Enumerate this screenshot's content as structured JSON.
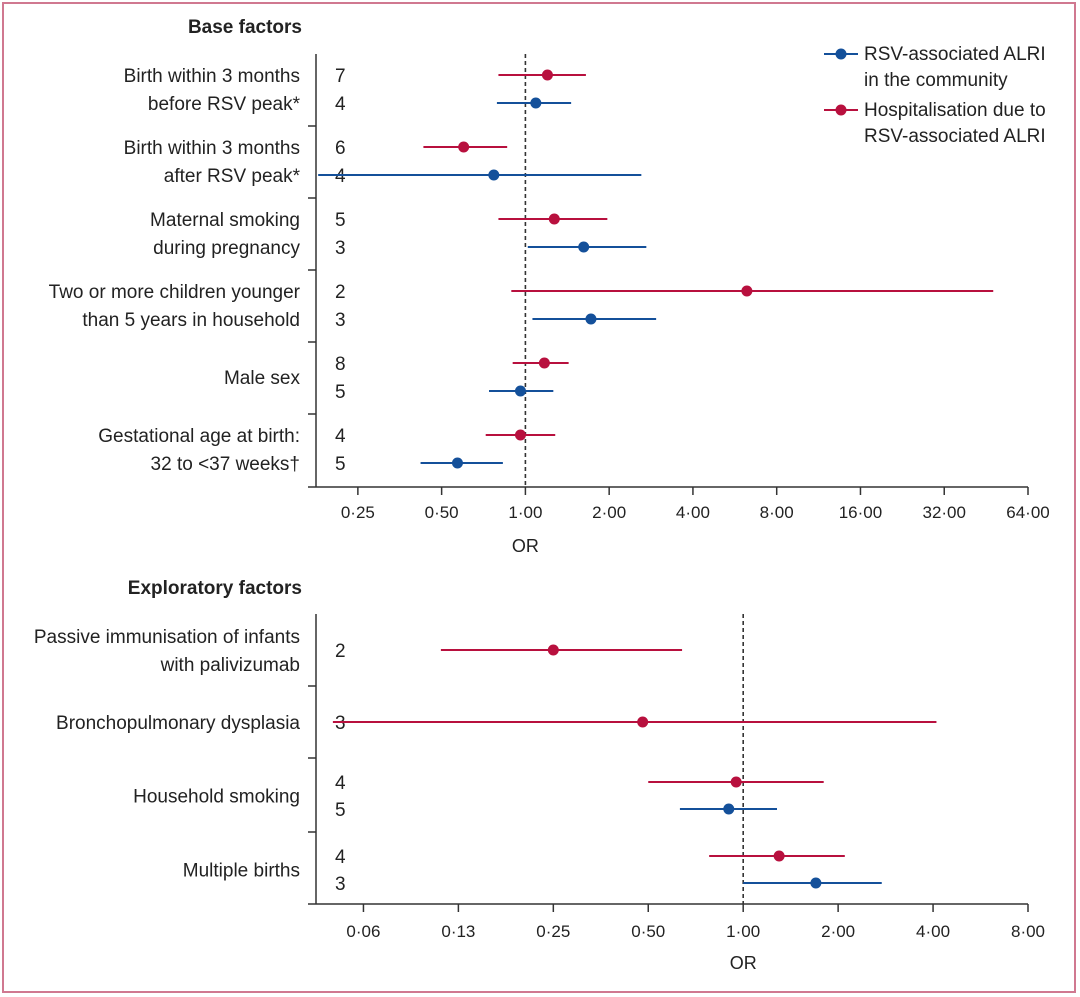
{
  "colors": {
    "community": "#14509a",
    "hospitalisation": "#b8103e",
    "frame": "#d07890"
  },
  "legend": [
    {
      "key": "community",
      "lines": [
        "RSV-associated ALRI",
        "in the community"
      ]
    },
    {
      "key": "hospitalisation",
      "lines": [
        "Hospitalisation due to",
        "RSV-associated ALRI"
      ]
    }
  ],
  "chart_data": [
    {
      "type": "forest",
      "title": "Base factors",
      "xlabel": "OR",
      "xscale": "log2",
      "xlim": [
        0.1768,
        64
      ],
      "reference_line": 1,
      "ticks": [
        {
          "value": 0.25,
          "label": "0·25"
        },
        {
          "value": 0.5,
          "label": "0·50"
        },
        {
          "value": 1,
          "label": "1·00"
        },
        {
          "value": 2,
          "label": "2·00"
        },
        {
          "value": 4,
          "label": "4·00"
        },
        {
          "value": 8,
          "label": "8·00"
        },
        {
          "value": 16,
          "label": "16·00"
        },
        {
          "value": 32,
          "label": "32·00"
        },
        {
          "value": 64,
          "label": "64·00"
        }
      ],
      "factors": [
        {
          "label": [
            "Birth within 3 months",
            "before RSV peak*"
          ],
          "rows": [
            {
              "series": "hospitalisation",
              "n": "7",
              "or": 1.2,
              "lo": 0.8,
              "hi": 1.65
            },
            {
              "series": "community",
              "n": "4",
              "or": 1.09,
              "lo": 0.79,
              "hi": 1.46
            }
          ]
        },
        {
          "label": [
            "Birth within 3 months",
            "after RSV peak*"
          ],
          "rows": [
            {
              "series": "hospitalisation",
              "n": "6",
              "or": 0.6,
              "lo": 0.43,
              "hi": 0.86
            },
            {
              "series": "community",
              "n": "4",
              "or": 0.77,
              "lo": 0.18,
              "hi": 2.61
            }
          ]
        },
        {
          "label": [
            "Maternal smoking",
            "during pregnancy"
          ],
          "rows": [
            {
              "series": "hospitalisation",
              "n": "5",
              "or": 1.27,
              "lo": 0.8,
              "hi": 1.97
            },
            {
              "series": "community",
              "n": "3",
              "or": 1.62,
              "lo": 1.02,
              "hi": 2.72
            }
          ]
        },
        {
          "label": [
            "Two or more children younger",
            "than 5 years in household"
          ],
          "rows": [
            {
              "series": "hospitalisation",
              "n": "2",
              "or": 6.25,
              "lo": 0.89,
              "hi": 48.0
            },
            {
              "series": "community",
              "n": "3",
              "or": 1.72,
              "lo": 1.06,
              "hi": 2.95
            }
          ]
        },
        {
          "label": [
            "Male sex"
          ],
          "rows": [
            {
              "series": "hospitalisation",
              "n": "8",
              "or": 1.17,
              "lo": 0.9,
              "hi": 1.43
            },
            {
              "series": "community",
              "n": "5",
              "or": 0.96,
              "lo": 0.74,
              "hi": 1.26
            }
          ]
        },
        {
          "label": [
            "Gestational age at birth:",
            "32 to <37 weeks†"
          ],
          "rows": [
            {
              "series": "hospitalisation",
              "n": "4",
              "or": 0.96,
              "lo": 0.72,
              "hi": 1.28
            },
            {
              "series": "community",
              "n": "5",
              "or": 0.57,
              "lo": 0.42,
              "hi": 0.83
            }
          ]
        }
      ]
    },
    {
      "type": "forest",
      "title": "Exploratory factors",
      "xlabel": "OR",
      "xscale": "log2",
      "xlim": [
        0.0442,
        8
      ],
      "reference_line": 1,
      "ticks": [
        {
          "value": 0.0625,
          "label": "0·06"
        },
        {
          "value": 0.125,
          "label": "0·13"
        },
        {
          "value": 0.25,
          "label": "0·25"
        },
        {
          "value": 0.5,
          "label": "0·50"
        },
        {
          "value": 1,
          "label": "1·00"
        },
        {
          "value": 2,
          "label": "2·00"
        },
        {
          "value": 4,
          "label": "4·00"
        },
        {
          "value": 8,
          "label": "8·00"
        }
      ],
      "factors": [
        {
          "label": [
            "Passive immunisation of infants",
            "with palivizumab"
          ],
          "rows": [
            {
              "series": "hospitalisation",
              "n": "2",
              "or": 0.25,
              "lo": 0.11,
              "hi": 0.64
            }
          ]
        },
        {
          "label": [
            "Bronchopulmonary dysplasia"
          ],
          "rows": [
            {
              "series": "hospitalisation",
              "n": "3",
              "or": 0.48,
              "lo": 0.05,
              "hi": 4.1
            }
          ]
        },
        {
          "label": [
            "Household smoking"
          ],
          "rows": [
            {
              "series": "hospitalisation",
              "n": "4",
              "or": 0.95,
              "lo": 0.5,
              "hi": 1.8
            },
            {
              "series": "community",
              "n": "5",
              "or": 0.9,
              "lo": 0.63,
              "hi": 1.28
            }
          ]
        },
        {
          "label": [
            "Multiple births"
          ],
          "rows": [
            {
              "series": "hospitalisation",
              "n": "4",
              "or": 1.3,
              "lo": 0.78,
              "hi": 2.1
            },
            {
              "series": "community",
              "n": "3",
              "or": 1.7,
              "lo": 1.0,
              "hi": 2.75
            }
          ]
        }
      ]
    }
  ]
}
